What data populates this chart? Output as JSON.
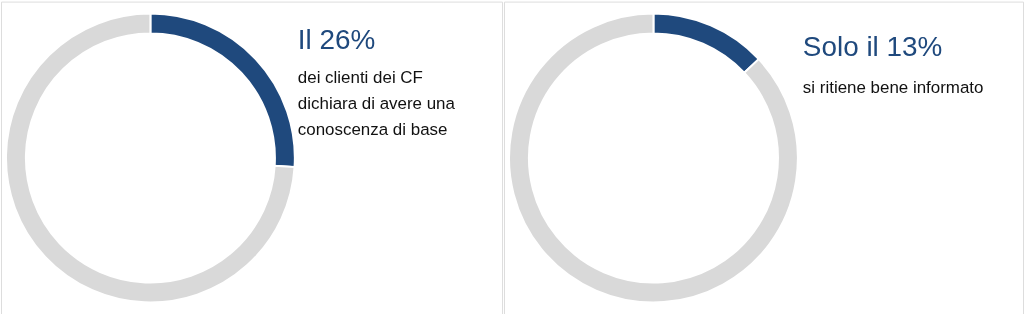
{
  "chart_data": [
    {
      "type": "donut",
      "title": "Il 26%",
      "subtitle": "dei clienti dei CF dichiara di avere una conoscenza di base",
      "categories": [
        null,
        null
      ],
      "values": [
        26,
        74
      ],
      "colors": [
        "#1f497d",
        "#d9d9d9"
      ],
      "legend": false
    },
    {
      "type": "donut",
      "title": "Solo il 13%",
      "subtitle": "si ritiene bene informato",
      "categories": [
        null,
        null
      ],
      "values": [
        13,
        87
      ],
      "colors": [
        "#1f497d",
        "#d9d9d9"
      ],
      "legend": false
    }
  ]
}
